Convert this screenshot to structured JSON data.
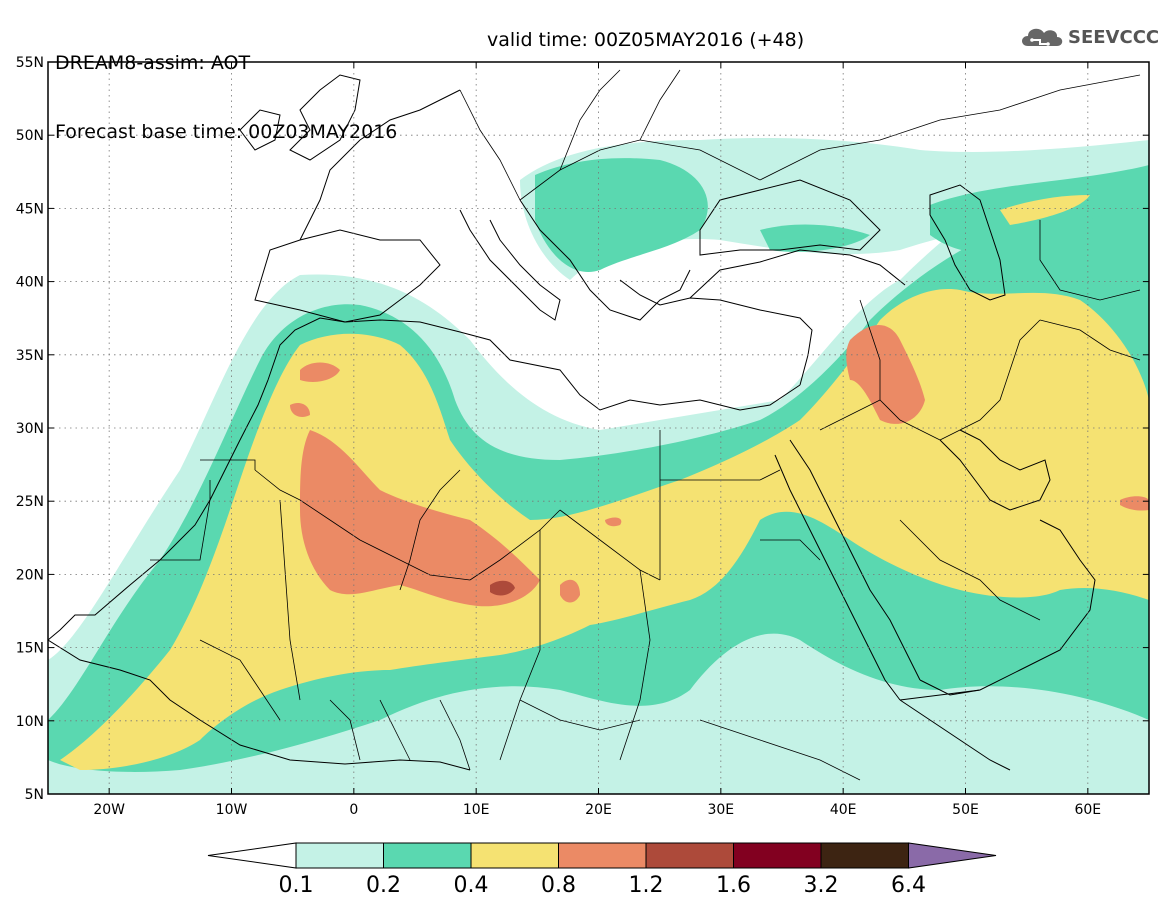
{
  "header": {
    "title_line1": "DREAM8-assim: AOT",
    "title_line2": "Forecast base time: 00Z03MAY2016",
    "valid_time": "valid time: 00Z05MAY2016 (+48)"
  },
  "logo": {
    "text": "SEEVCCC",
    "icon": "cloud-icon"
  },
  "map": {
    "lon_ticks": [
      "20W",
      "10W",
      "0",
      "10E",
      "20E",
      "30E",
      "40E",
      "50E",
      "60E"
    ],
    "lat_ticks": [
      "55N",
      "50N",
      "45N",
      "40N",
      "35N",
      "30N",
      "25N",
      "20N",
      "15N",
      "10N",
      "5N"
    ],
    "lon_range": [
      -25,
      65
    ],
    "lat_range": [
      5,
      55
    ]
  },
  "colorbar": {
    "levels": [
      "0.1",
      "0.2",
      "0.4",
      "0.8",
      "1.2",
      "1.6",
      "3.2",
      "6.4"
    ],
    "colors": {
      "below": "#ffffff",
      "c1": "#c4f2e6",
      "c2": "#5ad8b0",
      "c3": "#f5e272",
      "c4": "#eb8a65",
      "c5": "#ad4a3a",
      "c6": "#820020",
      "c7": "#3d2412",
      "above": "#8a6aa8"
    }
  }
}
